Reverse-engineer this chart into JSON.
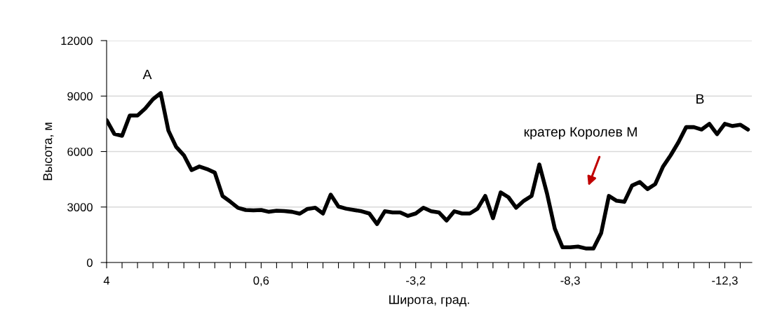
{
  "chart_data": {
    "type": "line",
    "xlabel": "Широта, град.",
    "ylabel": "Высота, м",
    "categories": [
      "4",
      null,
      null,
      null,
      null,
      null,
      null,
      null,
      null,
      null,
      null,
      null,
      null,
      null,
      null,
      null,
      null,
      null,
      null,
      null,
      "0,6",
      null,
      null,
      null,
      null,
      null,
      null,
      null,
      null,
      null,
      null,
      null,
      null,
      null,
      null,
      null,
      null,
      null,
      null,
      null,
      "-3,2",
      null,
      null,
      null,
      null,
      null,
      null,
      null,
      null,
      null,
      null,
      null,
      null,
      null,
      null,
      null,
      null,
      null,
      null,
      null,
      "-8,3",
      null,
      null,
      null,
      null,
      null,
      null,
      null,
      null,
      null,
      null,
      null,
      null,
      null,
      null,
      null,
      null,
      null,
      null,
      null,
      "-12,3",
      null,
      null,
      null
    ],
    "series": [
      {
        "color": "#000000",
        "values": [
          7700,
          6950,
          6850,
          7950,
          7950,
          8330,
          8830,
          9160,
          7130,
          6250,
          5800,
          5000,
          5190,
          5050,
          4860,
          3600,
          3290,
          2960,
          2840,
          2820,
          2840,
          2740,
          2800,
          2780,
          2740,
          2640,
          2900,
          2960,
          2650,
          3670,
          3030,
          2910,
          2840,
          2770,
          2650,
          2080,
          2770,
          2710,
          2710,
          2520,
          2650,
          2960,
          2770,
          2710,
          2270,
          2770,
          2650,
          2650,
          2910,
          3600,
          2400,
          3790,
          3530,
          2960,
          3340,
          3600,
          5300,
          3720,
          1830,
          820,
          820,
          860,
          760,
          760,
          1590,
          3600,
          3340,
          3280,
          4160,
          4350,
          3970,
          4240,
          5180,
          5800,
          6500,
          7320,
          7320,
          7190,
          7500,
          6940,
          7500,
          7380,
          7450,
          7190
        ]
      }
    ],
    "ylim": [
      0,
      12000
    ],
    "yticks": [
      0,
      3000,
      6000,
      9000,
      12000
    ],
    "grid": "y",
    "legend": false,
    "marker": "none",
    "line_style": "solid",
    "annotations": [
      "A",
      "B",
      "кратер Королев М"
    ]
  }
}
